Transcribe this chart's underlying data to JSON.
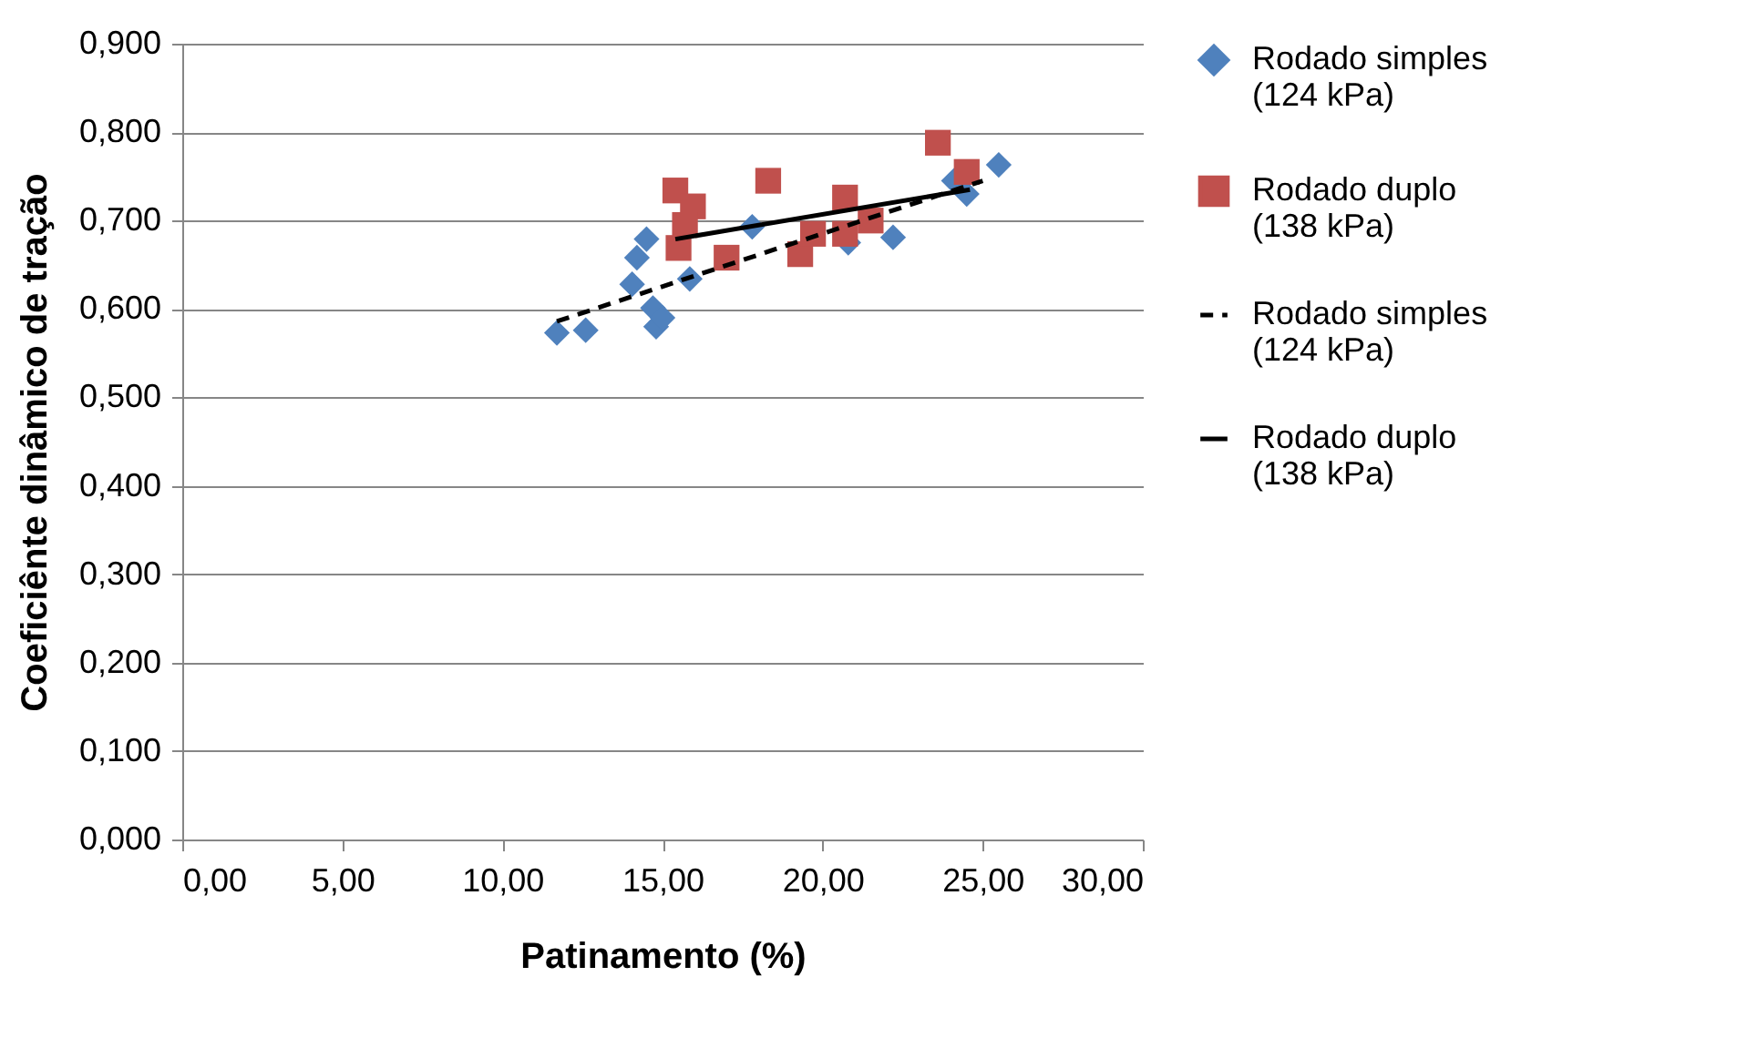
{
  "chart_data": {
    "type": "scatter",
    "xlabel": "Patinamento (%)",
    "ylabel": "Coeficiênte dinâmico de tração",
    "xlim": [
      0,
      30
    ],
    "ylim": [
      0,
      0.9
    ],
    "xticks": [
      {
        "value": 0,
        "label": "0,00"
      },
      {
        "value": 5,
        "label": "5,00"
      },
      {
        "value": 10,
        "label": "10,00"
      },
      {
        "value": 15,
        "label": "15,00"
      },
      {
        "value": 20,
        "label": "20,00"
      },
      {
        "value": 25,
        "label": "25,00"
      },
      {
        "value": 30,
        "label": "30,00"
      }
    ],
    "yticks": [
      {
        "value": 0,
        "label": "0,000"
      },
      {
        "value": 0.1,
        "label": "0,100"
      },
      {
        "value": 0.2,
        "label": "0,200"
      },
      {
        "value": 0.3,
        "label": "0,300"
      },
      {
        "value": 0.4,
        "label": "0,400"
      },
      {
        "value": 0.5,
        "label": "0,500"
      },
      {
        "value": 0.6,
        "label": "0,600"
      },
      {
        "value": 0.7,
        "label": "0,700"
      },
      {
        "value": 0.8,
        "label": "0,800"
      },
      {
        "value": 0.9,
        "label": "0,900"
      }
    ],
    "grid": "y",
    "legend": "right",
    "series": [
      {
        "name": "Rodado simples (124 kPa)",
        "type": "scatter",
        "marker": "diamond",
        "color": "#4f81bd",
        "x": [
          11.7,
          12.6,
          14.05,
          14.2,
          14.5,
          14.7,
          14.8,
          15.0,
          15.85,
          17.8,
          20.8,
          22.2,
          24.5,
          24.1,
          25.5
        ],
        "values": [
          0.573,
          0.576,
          0.628,
          0.658,
          0.679,
          0.601,
          0.58,
          0.59,
          0.634,
          0.693,
          0.675,
          0.681,
          0.73,
          0.745,
          0.763
        ]
      },
      {
        "name": "Rodado duplo (138 kPa)",
        "type": "scatter",
        "marker": "square",
        "color": "#c0504d",
        "x": [
          15.4,
          15.95,
          15.7,
          15.5,
          17.0,
          18.3,
          19.3,
          19.7,
          20.7,
          20.7,
          21.5,
          23.6,
          24.5
        ],
        "values": [
          0.734,
          0.716,
          0.695,
          0.669,
          0.658,
          0.745,
          0.662,
          0.685,
          0.726,
          0.685,
          0.7,
          0.788,
          0.755
        ]
      },
      {
        "name": "Rodado simples (124 kPa)",
        "type": "line",
        "line_style": "dashed",
        "color": "#000000",
        "x": [
          11.7,
          25.0
        ],
        "values": [
          0.586,
          0.745
        ]
      },
      {
        "name": "Rodado duplo (138 kPa)",
        "type": "line",
        "line_style": "solid",
        "color": "#000000",
        "x": [
          15.4,
          24.6
        ],
        "values": [
          0.679,
          0.735
        ]
      }
    ]
  }
}
